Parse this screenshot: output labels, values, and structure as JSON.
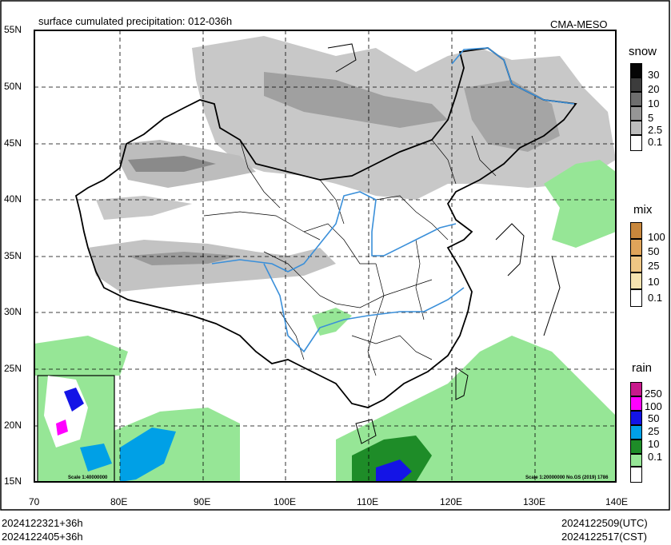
{
  "title": "surface cumulated precipitation: 012-036h",
  "brand": "CMA-MESO",
  "lat_labels": [
    "55N",
    "50N",
    "45N",
    "40N",
    "35N",
    "30N",
    "25N",
    "20N",
    "15N"
  ],
  "lon_labels": [
    "70",
    "80E",
    "90E",
    "100E",
    "110E",
    "120E",
    "130E",
    "140E"
  ],
  "legends": {
    "snow": {
      "title": "snow",
      "levels": [
        "30",
        "20",
        "10",
        "5",
        "2.5",
        "0.1"
      ],
      "colors": [
        "#050505",
        "#3c3c3c",
        "#6e6e6e",
        "#969696",
        "#bdbdbd",
        "#ffffff"
      ]
    },
    "mix": {
      "title": "mix",
      "levels": [
        "100",
        "50",
        "25",
        "10",
        "0.1"
      ],
      "colors": [
        "#c8873c",
        "#e0a45a",
        "#efc684",
        "#f6e3b0",
        "#ffffff"
      ]
    },
    "rain": {
      "title": "rain",
      "levels": [
        "250",
        "100",
        "50",
        "25",
        "10",
        "0.1"
      ],
      "colors": [
        "#c8198c",
        "#ff00ff",
        "#1414e6",
        "#00a0e6",
        "#1e8c28",
        "#96e696"
      ]
    }
  },
  "inset_scale": "Scale 1:40000000",
  "main_scale": "Scale 1:20000000 No.GS (2019) 1786",
  "footer": {
    "init_utc": "2024122321+36h",
    "init_cst": "2024122405+36h",
    "valid_utc": "2024122509(UTC)",
    "valid_cst": "2024122517(CST)"
  }
}
